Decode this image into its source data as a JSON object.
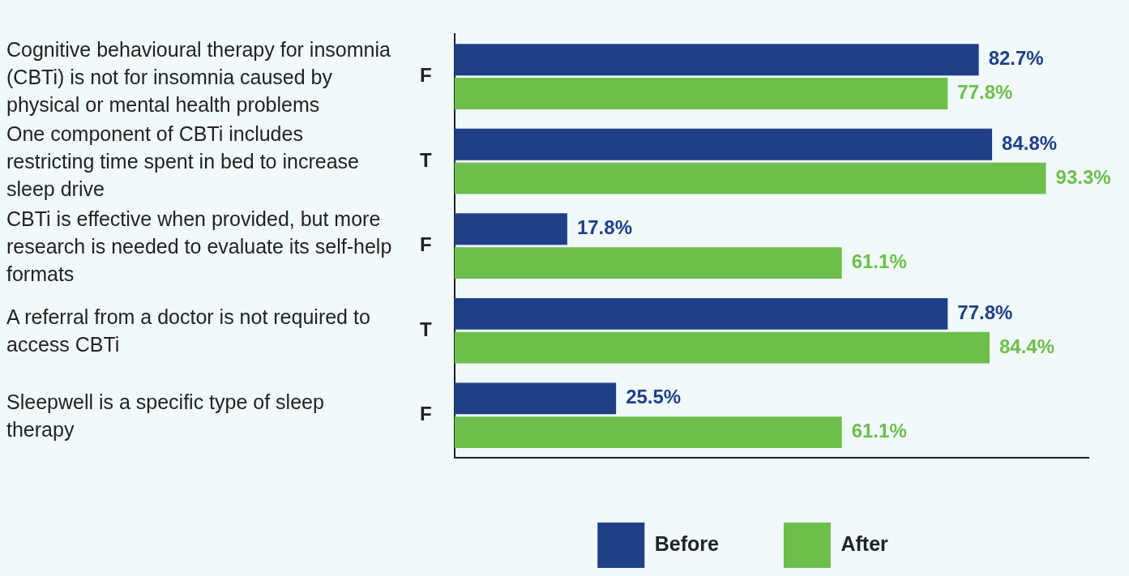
{
  "chart_data": {
    "type": "bar",
    "orientation": "horizontal",
    "categories": [
      "F",
      "T",
      "F",
      "T",
      "F"
    ],
    "series": [
      {
        "name": "Before",
        "color": "#1f3f87",
        "values": [
          82.7,
          84.8,
          17.8,
          77.8,
          25.5
        ],
        "value_labels": [
          "82.7%",
          "84.8%",
          "17.8%",
          "77.8%",
          "25.5%"
        ]
      },
      {
        "name": "After",
        "color": "#6cbf4b",
        "values": [
          77.8,
          93.3,
          61.1,
          84.4,
          61.1
        ],
        "value_labels": [
          "77.8%",
          "93.3%",
          "61.1%",
          "84.4%",
          "61.1%"
        ]
      }
    ],
    "xlim": [
      0,
      100
    ],
    "tick_labels": "y",
    "grid": false,
    "legend": "bottom",
    "annotations": [
      "Cognitive behavioural therapy for insomnia (CBTi) is not for insomnia caused by physical or mental health problems",
      "One component of CBTi includes restricting time spent in bed to increase sleep drive",
      "CBTi is effective when provided, but more research is needed to evaluate its self-help formats",
      "A referral from a doctor is not required to access CBTi",
      "Sleepwell is a specific type of sleep therapy"
    ]
  }
}
